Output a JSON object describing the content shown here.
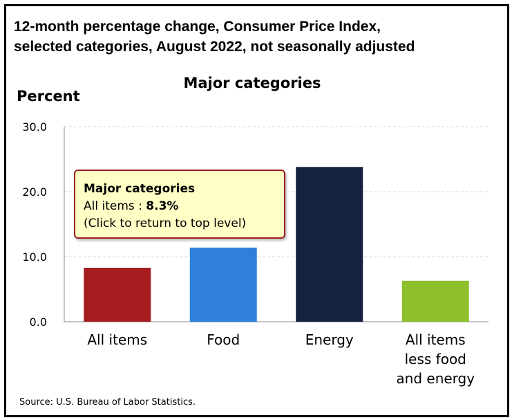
{
  "header": {
    "title_line1": "12-month percentage change, Consumer Price Index,",
    "title_line2": "selected categories, August 2022, not seasonally adjusted"
  },
  "chart_data": {
    "type": "bar",
    "title": "Major categories",
    "ylabel": "Percent",
    "xlabel": "",
    "ylim": [
      0,
      30
    ],
    "yticks": [
      "0.0",
      "10.0",
      "20.0",
      "30.0"
    ],
    "grid": true,
    "categories": [
      [
        "All items"
      ],
      [
        "Food"
      ],
      [
        "Energy"
      ],
      [
        "All items",
        "less food",
        "and energy"
      ]
    ],
    "values": [
      8.3,
      11.4,
      23.8,
      6.3
    ],
    "colors": [
      "#a51d20",
      "#2f80dd",
      "#15223d",
      "#8ec02c"
    ]
  },
  "tooltip": {
    "title": "Major categories",
    "label": "All items : ",
    "value": "8.3%",
    "hint": "(Click to return to top level)"
  },
  "footer": {
    "source": "Source: U.S. Bureau of Labor Statistics."
  }
}
